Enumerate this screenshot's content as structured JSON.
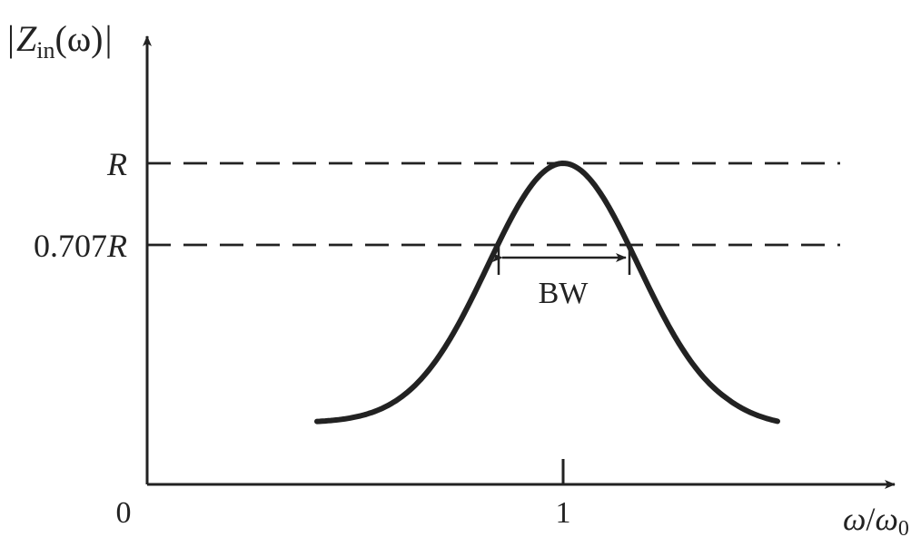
{
  "diagram": {
    "y_axis_label": {
      "bar_left": "|",
      "symbol": "Z",
      "subscript": "in",
      "argument": "(ω)",
      "bar_right": "|"
    },
    "x_axis_label": {
      "omega": "ω",
      "slash": "/",
      "omega0": "ω",
      "subscript": "0"
    },
    "origin_label": "0",
    "x_tick_label": "1",
    "level_R": {
      "label": "R",
      "value": 1.0
    },
    "level_707": {
      "number": "0.707",
      "symbol": "R",
      "value": 0.707
    },
    "bandwidth_label": "BW",
    "curve": {
      "type": "resonance",
      "peak_x": 1,
      "half_power_points": [
        0.85,
        1.16
      ]
    },
    "colors": {
      "ink": "#222222",
      "background": "#ffffff"
    }
  }
}
